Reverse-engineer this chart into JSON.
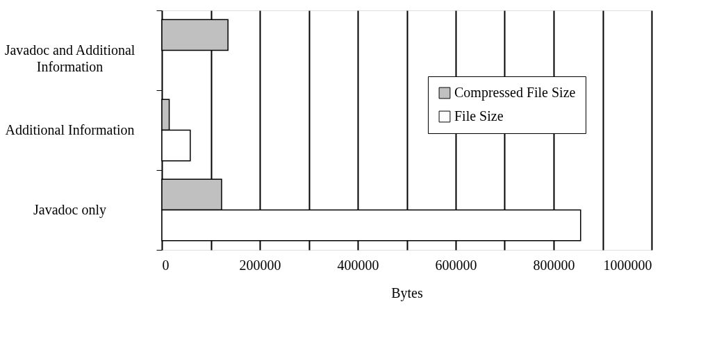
{
  "chart_data": {
    "type": "bar",
    "orientation": "horizontal",
    "xlabel": "Bytes",
    "categories": [
      "Javadoc and Additional Information",
      "Additional Information",
      "Javadoc only"
    ],
    "series": [
      {
        "name": "Compressed File Size",
        "color": "#c0c0c0",
        "values": [
          135000,
          15000,
          122000
        ]
      },
      {
        "name": "File Size",
        "color": "#ffffff",
        "values": [
          null,
          58000,
          855000
        ]
      }
    ],
    "xlim": [
      0,
      1000000
    ],
    "xticks": [
      0,
      {
        "value": 100000,
        "label": null
      },
      200000,
      {
        "value": 300000,
        "label": null
      },
      400000,
      {
        "value": 500000,
        "label": null
      },
      600000,
      {
        "value": 700000,
        "label": null
      },
      800000,
      {
        "value": 900000,
        "label": null
      },
      1000000
    ],
    "grid": "x",
    "legend": "top right"
  }
}
